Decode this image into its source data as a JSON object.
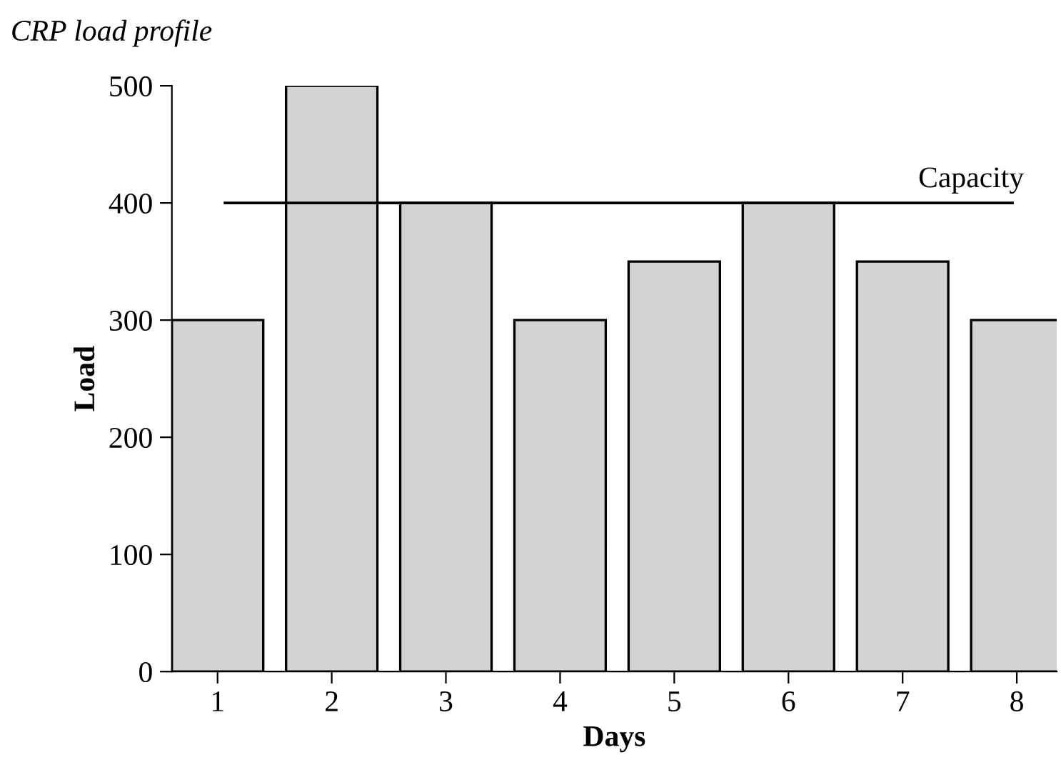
{
  "chart_data": {
    "type": "bar",
    "title": "CRP load profile",
    "xlabel": "Days",
    "ylabel": "Load",
    "categories": [
      "1",
      "2",
      "3",
      "4",
      "5",
      "6",
      "7",
      "8"
    ],
    "values": [
      300,
      500,
      400,
      300,
      350,
      400,
      350,
      300
    ],
    "color": "#d3d3d3",
    "ylim": [
      0,
      500
    ],
    "yticks": [
      0,
      100,
      200,
      300,
      400,
      500
    ],
    "ref_lines": [
      {
        "axis": "y",
        "value": 400,
        "label": "Capacity",
        "color": "#000000"
      }
    ],
    "grid": false,
    "legend": false
  }
}
